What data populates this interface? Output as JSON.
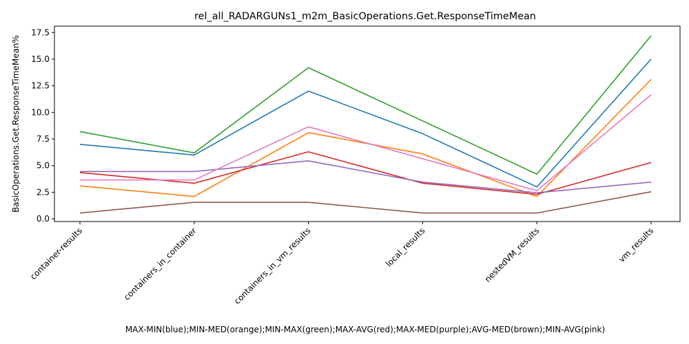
{
  "chart_data": {
    "type": "line",
    "title": "rel_all_RADARGUNs1_m2m_BasicOperations.Get.ResponseTimeMean",
    "xlabel": "MAX-MIN(blue);MIN-MED(orange);MIN-MAX(green);MAX-AVG(red);MAX-MED(purple);AVG-MED(brown);MIN-AVG(pink)",
    "ylabel": "BasicOperations.Get.ResponseTimeMean%",
    "categories": [
      "container-results",
      "containers_in_container",
      "containers_in_vm_results",
      "local_results",
      "nestedVM_results",
      "vm_results"
    ],
    "ylim": [
      -0.25,
      18.1
    ],
    "yticks": [
      "0.0",
      "2.5",
      "5.0",
      "7.5",
      "10.0",
      "12.5",
      "15.0",
      "17.5"
    ],
    "grid": false,
    "series": [
      {
        "color": "#1f77b4",
        "values": [
          7.0,
          6.0,
          12.0,
          8.0,
          3.0,
          15.0
        ]
      },
      {
        "color": "#ff7f0e",
        "values": [
          3.1,
          2.1,
          8.1,
          6.1,
          2.1,
          13.1
        ]
      },
      {
        "color": "#2ca02c",
        "values": [
          8.2,
          6.2,
          14.2,
          9.2,
          4.2,
          17.2
        ]
      },
      {
        "color": "#d62728",
        "values": [
          4.35,
          3.35,
          6.3,
          3.35,
          2.3,
          5.3
        ]
      },
      {
        "color": "#9467bd",
        "values": [
          4.45,
          4.45,
          5.45,
          3.45,
          2.45,
          3.45
        ]
      },
      {
        "color": "#8c564b",
        "values": [
          0.55,
          1.55,
          1.55,
          0.55,
          0.55,
          2.55
        ]
      },
      {
        "color": "#e377c2",
        "values": [
          3.65,
          3.65,
          8.65,
          5.65,
          2.65,
          11.65
        ]
      }
    ]
  }
}
